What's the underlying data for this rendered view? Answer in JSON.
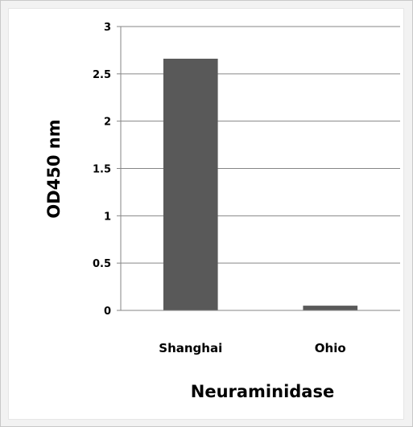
{
  "chart_data": {
    "type": "bar",
    "categories": [
      "Shanghai",
      "Ohio"
    ],
    "values": [
      2.66,
      0.05
    ],
    "xlabel": "Neuraminidase",
    "ylabel": "OD450 nm",
    "ylim": [
      0,
      3
    ],
    "yticks": [
      "0",
      "0.5",
      "1",
      "1.5",
      "2",
      "2.5",
      "3"
    ],
    "grid": true,
    "legend": "none",
    "bar_color": "#595959"
  }
}
